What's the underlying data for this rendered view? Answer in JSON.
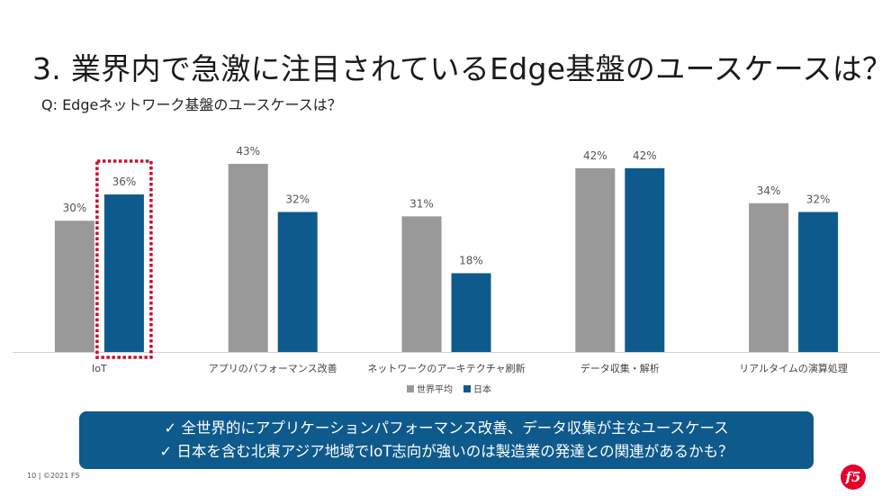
{
  "slide": {
    "title": "3. 業界内で急激に注目されているEdge基盤のユースケースは？",
    "subtitle": "Q: Edgeネットワーク基盤のユースケースは？",
    "footer": "10 | ©2021 F5",
    "logo": "f5"
  },
  "callout": {
    "lines": [
      "✓ 全世界的にアプリケーションパフォーマンス改善、データ収集が主なユースケース",
      "✓ 日本を含む北東アジア地域でIoT志向が強いのは製造業の発達との関連があるかも？"
    ],
    "background": "#0e5a8c"
  },
  "chart_data": {
    "type": "bar",
    "categories": [
      "IoT",
      "アプリのパフォーマンス改善",
      "ネットワークのアーキテクチャ刷新",
      "データ収集・解析",
      "リアルタイムの演算処理"
    ],
    "series": [
      {
        "name": "世界平均",
        "values": [
          30,
          43,
          31,
          42,
          34
        ],
        "color": "#999999"
      },
      {
        "name": "日本",
        "values": [
          36,
          32,
          18,
          42,
          32
        ],
        "color": "#0e5a8c"
      }
    ],
    "value_suffix": "%",
    "ylim": [
      0,
      45
    ],
    "grid": false,
    "legend": "bottom-center",
    "highlight": {
      "category": "IoT",
      "series": "日本",
      "color": "#c8102e",
      "style": "dotted-box"
    }
  }
}
